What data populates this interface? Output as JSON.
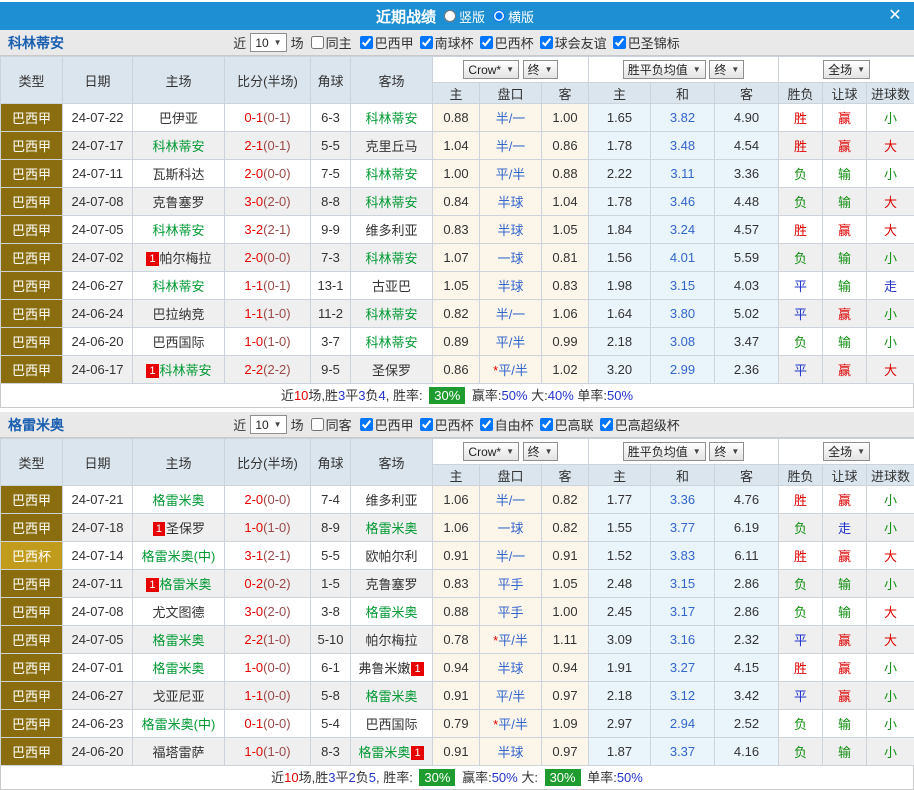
{
  "titlebar": {
    "title": "近期战绩",
    "radios": [
      {
        "label": "竖版",
        "checked": false
      },
      {
        "label": "横版",
        "checked": true
      }
    ],
    "close": "✕"
  },
  "labels": {
    "near": "近",
    "games": "场"
  },
  "dropdowns": {
    "source": "Crow*",
    "final_odds": "终",
    "avg": "胜平负均值",
    "final_avg": "终",
    "scope": "全场"
  },
  "columns": {
    "type": "类型",
    "date": "日期",
    "home": "主场",
    "score": "比分(半场)",
    "corner": "角球",
    "away": "客场",
    "sub": [
      "主",
      "盘口",
      "客",
      "主",
      "和",
      "客",
      "胜负",
      "让球",
      "进球数"
    ]
  },
  "colors": {
    "titlebar_bg": "#1e8fd2",
    "team_name": "#1a5fb0",
    "league_dark_bg": "#8a6d0e",
    "league_light_bg": "#c19b1c",
    "green_team": "#009933",
    "score_red": "#e60000",
    "half_score": "#9a4a4a",
    "handicap_blue": "#3366cc",
    "win_red": "#dd0000",
    "draw_blue": "#2233cc",
    "loss_green": "#149014",
    "rate_badge_bg": "#1e9c30",
    "header_bg": "#dbe5ee",
    "crow_bg": "#fcf6ea",
    "avg_bg": "#eaf4fb",
    "alt_row_bg": "#efefef"
  },
  "sections": [
    {
      "team": "科林蒂安",
      "filter": {
        "count": "10",
        "same_label": "同主",
        "same_checked": false,
        "leagues": [
          {
            "label": "巴西甲",
            "checked": true
          },
          {
            "label": "南球杯",
            "checked": true
          },
          {
            "label": "巴西杯",
            "checked": true
          },
          {
            "label": "球会友谊",
            "checked": true
          },
          {
            "label": "巴圣锦标",
            "checked": true
          }
        ]
      },
      "rows": [
        {
          "league": "巴西甲",
          "date": "24-07-22",
          "home": {
            "name": "巴伊亚"
          },
          "score_ft": "0-1",
          "score_ht": "(0-1)",
          "corners": "6-3",
          "away": {
            "name": "科林蒂安",
            "green": true
          },
          "crow": [
            "0.88",
            "半/一",
            "1.00"
          ],
          "avg": [
            "1.65",
            "3.82",
            "4.90"
          ],
          "result": "胜",
          "handicap_result": "赢",
          "goals": "小"
        },
        {
          "league": "巴西甲",
          "date": "24-07-17",
          "home": {
            "name": "科林蒂安",
            "green": true
          },
          "score_ft": "2-1",
          "score_ht": "(0-1)",
          "corners": "5-5",
          "away": {
            "name": "克里丘马"
          },
          "crow": [
            "1.04",
            "半/一",
            "0.86"
          ],
          "avg": [
            "1.78",
            "3.48",
            "4.54"
          ],
          "result": "胜",
          "handicap_result": "赢",
          "goals": "大"
        },
        {
          "league": "巴西甲",
          "date": "24-07-11",
          "home": {
            "name": "瓦斯科达"
          },
          "score_ft": "2-0",
          "score_ht": "(0-0)",
          "corners": "7-5",
          "away": {
            "name": "科林蒂安",
            "green": true
          },
          "crow": [
            "1.00",
            "平/半",
            "0.88"
          ],
          "avg": [
            "2.22",
            "3.11",
            "3.36"
          ],
          "result": "负",
          "handicap_result": "输",
          "goals": "小"
        },
        {
          "league": "巴西甲",
          "date": "24-07-08",
          "home": {
            "name": "克鲁塞罗"
          },
          "score_ft": "3-0",
          "score_ht": "(2-0)",
          "corners": "8-8",
          "away": {
            "name": "科林蒂安",
            "green": true
          },
          "crow": [
            "0.84",
            "半球",
            "1.04"
          ],
          "avg": [
            "1.78",
            "3.46",
            "4.48"
          ],
          "result": "负",
          "handicap_result": "输",
          "goals": "大"
        },
        {
          "league": "巴西甲",
          "date": "24-07-05",
          "home": {
            "name": "科林蒂安",
            "green": true
          },
          "score_ft": "3-2",
          "score_ht": "(2-1)",
          "corners": "9-9",
          "away": {
            "name": "维多利亚"
          },
          "crow": [
            "0.83",
            "半球",
            "1.05"
          ],
          "avg": [
            "1.84",
            "3.24",
            "4.57"
          ],
          "result": "胜",
          "handicap_result": "赢",
          "goals": "大"
        },
        {
          "league": "巴西甲",
          "date": "24-07-02",
          "home": {
            "name": "帕尔梅拉",
            "badge": "1"
          },
          "score_ft": "2-0",
          "score_ht": "(0-0)",
          "corners": "7-3",
          "away": {
            "name": "科林蒂安",
            "green": true
          },
          "crow": [
            "1.07",
            "一球",
            "0.81"
          ],
          "avg": [
            "1.56",
            "4.01",
            "5.59"
          ],
          "result": "负",
          "handicap_result": "输",
          "goals": "小"
        },
        {
          "league": "巴西甲",
          "date": "24-06-27",
          "home": {
            "name": "科林蒂安",
            "green": true
          },
          "score_ft": "1-1",
          "score_ht": "(0-1)",
          "corners": "13-1",
          "away": {
            "name": "古亚巴"
          },
          "crow": [
            "1.05",
            "半球",
            "0.83"
          ],
          "avg": [
            "1.98",
            "3.15",
            "4.03"
          ],
          "result": "平",
          "handicap_result": "输",
          "goals": "走"
        },
        {
          "league": "巴西甲",
          "date": "24-06-24",
          "home": {
            "name": "巴拉纳竞"
          },
          "score_ft": "1-1",
          "score_ht": "(1-0)",
          "corners": "11-2",
          "away": {
            "name": "科林蒂安",
            "green": true
          },
          "crow": [
            "0.82",
            "半/一",
            "1.06"
          ],
          "avg": [
            "1.64",
            "3.80",
            "5.02"
          ],
          "result": "平",
          "handicap_result": "赢",
          "goals": "小"
        },
        {
          "league": "巴西甲",
          "date": "24-06-20",
          "home": {
            "name": "巴西国际"
          },
          "score_ft": "1-0",
          "score_ht": "(1-0)",
          "corners": "3-7",
          "away": {
            "name": "科林蒂安",
            "green": true
          },
          "crow": [
            "0.89",
            "平/半",
            "0.99"
          ],
          "avg": [
            "2.18",
            "3.08",
            "3.47"
          ],
          "result": "负",
          "handicap_result": "输",
          "goals": "小"
        },
        {
          "league": "巴西甲",
          "date": "24-06-17",
          "home": {
            "name": "科林蒂安",
            "green": true,
            "badge": "1"
          },
          "score_ft": "2-2",
          "score_ht": "(2-2)",
          "corners": "9-5",
          "away": {
            "name": "圣保罗"
          },
          "crow": [
            "0.86",
            "平/半",
            "1.02"
          ],
          "crow_star": true,
          "avg": [
            "3.20",
            "2.99",
            "2.36"
          ],
          "result": "平",
          "handicap_result": "赢",
          "goals": "大"
        }
      ],
      "summary": [
        {
          "t": "近",
          "c": "k"
        },
        {
          "t": "10",
          "c": "r"
        },
        {
          "t": "场,胜",
          "c": "k"
        },
        {
          "t": "3",
          "c": "b"
        },
        {
          "t": "平",
          "c": "k"
        },
        {
          "t": "3",
          "c": "b"
        },
        {
          "t": "负",
          "c": "k"
        },
        {
          "t": "4",
          "c": "b"
        },
        {
          "t": ", 胜率: ",
          "c": "k"
        },
        {
          "t": "30%",
          "c": "badge"
        },
        {
          "t": " 赢率:",
          "c": "k"
        },
        {
          "t": "50%",
          "c": "b"
        },
        {
          "t": " 大:",
          "c": "k"
        },
        {
          "t": "40%",
          "c": "b"
        },
        {
          "t": " 单率:",
          "c": "k"
        },
        {
          "t": "50%",
          "c": "b"
        }
      ]
    },
    {
      "team": "格雷米奥",
      "filter": {
        "count": "10",
        "same_label": "同客",
        "same_checked": false,
        "leagues": [
          {
            "label": "巴西甲",
            "checked": true
          },
          {
            "label": "巴西杯",
            "checked": true
          },
          {
            "label": "自由杯",
            "checked": true
          },
          {
            "label": "巴高联",
            "checked": true
          },
          {
            "label": "巴高超级杯",
            "checked": true
          }
        ]
      },
      "rows": [
        {
          "league": "巴西甲",
          "date": "24-07-21",
          "home": {
            "name": "格雷米奥",
            "green": true
          },
          "score_ft": "2-0",
          "score_ht": "(0-0)",
          "corners": "7-4",
          "away": {
            "name": "维多利亚"
          },
          "crow": [
            "1.06",
            "半/一",
            "0.82"
          ],
          "avg": [
            "1.77",
            "3.36",
            "4.76"
          ],
          "result": "胜",
          "handicap_result": "赢",
          "goals": "小"
        },
        {
          "league": "巴西甲",
          "date": "24-07-18",
          "home": {
            "name": "圣保罗",
            "badge": "1"
          },
          "score_ft": "1-0",
          "score_ht": "(1-0)",
          "corners": "8-9",
          "away": {
            "name": "格雷米奥",
            "green": true
          },
          "crow": [
            "1.06",
            "一球",
            "0.82"
          ],
          "avg": [
            "1.55",
            "3.77",
            "6.19"
          ],
          "result": "负",
          "handicap_result": "走",
          "goals": "小"
        },
        {
          "league": "巴西杯",
          "league_light": true,
          "date": "24-07-14",
          "home": {
            "name": "格雷米奥(中)",
            "green": true
          },
          "score_ft": "3-1",
          "score_ht": "(2-1)",
          "corners": "5-5",
          "away": {
            "name": "欧帕尔利"
          },
          "crow": [
            "0.91",
            "半/一",
            "0.91"
          ],
          "avg": [
            "1.52",
            "3.83",
            "6.11"
          ],
          "result": "胜",
          "handicap_result": "赢",
          "goals": "大"
        },
        {
          "league": "巴西甲",
          "date": "24-07-11",
          "home": {
            "name": "格雷米奥",
            "green": true,
            "badge": "1"
          },
          "score_ft": "0-2",
          "score_ht": "(0-2)",
          "corners": "1-5",
          "away": {
            "name": "克鲁塞罗"
          },
          "crow": [
            "0.83",
            "平手",
            "1.05"
          ],
          "avg": [
            "2.48",
            "3.15",
            "2.86"
          ],
          "result": "负",
          "handicap_result": "输",
          "goals": "小"
        },
        {
          "league": "巴西甲",
          "date": "24-07-08",
          "home": {
            "name": "尤文图德"
          },
          "score_ft": "3-0",
          "score_ht": "(2-0)",
          "corners": "3-8",
          "away": {
            "name": "格雷米奥",
            "green": true
          },
          "crow": [
            "0.88",
            "平手",
            "1.00"
          ],
          "avg": [
            "2.45",
            "3.17",
            "2.86"
          ],
          "result": "负",
          "handicap_result": "输",
          "goals": "大"
        },
        {
          "league": "巴西甲",
          "date": "24-07-05",
          "home": {
            "name": "格雷米奥",
            "green": true
          },
          "score_ft": "2-2",
          "score_ht": "(1-0)",
          "corners": "5-10",
          "away": {
            "name": "帕尔梅拉"
          },
          "crow": [
            "0.78",
            "平/半",
            "1.11"
          ],
          "crow_star": true,
          "avg": [
            "3.09",
            "3.16",
            "2.32"
          ],
          "result": "平",
          "handicap_result": "赢",
          "goals": "大"
        },
        {
          "league": "巴西甲",
          "date": "24-07-01",
          "home": {
            "name": "格雷米奥",
            "green": true
          },
          "score_ft": "1-0",
          "score_ht": "(0-0)",
          "corners": "6-1",
          "away": {
            "name": "弗鲁米嫩",
            "badge": "1",
            "badge_after": true
          },
          "crow": [
            "0.94",
            "半球",
            "0.94"
          ],
          "avg": [
            "1.91",
            "3.27",
            "4.15"
          ],
          "result": "胜",
          "handicap_result": "赢",
          "goals": "小"
        },
        {
          "league": "巴西甲",
          "date": "24-06-27",
          "home": {
            "name": "戈亚尼亚"
          },
          "score_ft": "1-1",
          "score_ht": "(0-0)",
          "corners": "5-8",
          "away": {
            "name": "格雷米奥",
            "green": true
          },
          "crow": [
            "0.91",
            "平/半",
            "0.97"
          ],
          "avg": [
            "2.18",
            "3.12",
            "3.42"
          ],
          "result": "平",
          "handicap_result": "赢",
          "goals": "小"
        },
        {
          "league": "巴西甲",
          "date": "24-06-23",
          "home": {
            "name": "格雷米奥(中)",
            "green": true
          },
          "score_ft": "0-1",
          "score_ht": "(0-0)",
          "corners": "5-4",
          "away": {
            "name": "巴西国际"
          },
          "crow": [
            "0.79",
            "平/半",
            "1.09"
          ],
          "crow_star": true,
          "avg": [
            "2.97",
            "2.94",
            "2.52"
          ],
          "result": "负",
          "handicap_result": "输",
          "goals": "小"
        },
        {
          "league": "巴西甲",
          "date": "24-06-20",
          "home": {
            "name": "福塔雷萨"
          },
          "score_ft": "1-0",
          "score_ht": "(1-0)",
          "corners": "8-3",
          "away": {
            "name": "格雷米奥",
            "green": true,
            "badge": "1",
            "badge_after": true
          },
          "crow": [
            "0.91",
            "半球",
            "0.97"
          ],
          "avg": [
            "1.87",
            "3.37",
            "4.16"
          ],
          "result": "负",
          "handicap_result": "输",
          "goals": "小"
        }
      ],
      "summary": [
        {
          "t": "近",
          "c": "k"
        },
        {
          "t": "10",
          "c": "r"
        },
        {
          "t": "场,胜",
          "c": "k"
        },
        {
          "t": "3",
          "c": "b"
        },
        {
          "t": "平",
          "c": "k"
        },
        {
          "t": "2",
          "c": "b"
        },
        {
          "t": "负",
          "c": "k"
        },
        {
          "t": "5",
          "c": "b"
        },
        {
          "t": ", 胜率: ",
          "c": "k"
        },
        {
          "t": "30%",
          "c": "badge"
        },
        {
          "t": " 赢率:",
          "c": "k"
        },
        {
          "t": "50%",
          "c": "b"
        },
        {
          "t": " 大: ",
          "c": "k"
        },
        {
          "t": "30%",
          "c": "badge"
        },
        {
          "t": " 单率:",
          "c": "k"
        },
        {
          "t": "50%",
          "c": "b"
        }
      ]
    }
  ]
}
